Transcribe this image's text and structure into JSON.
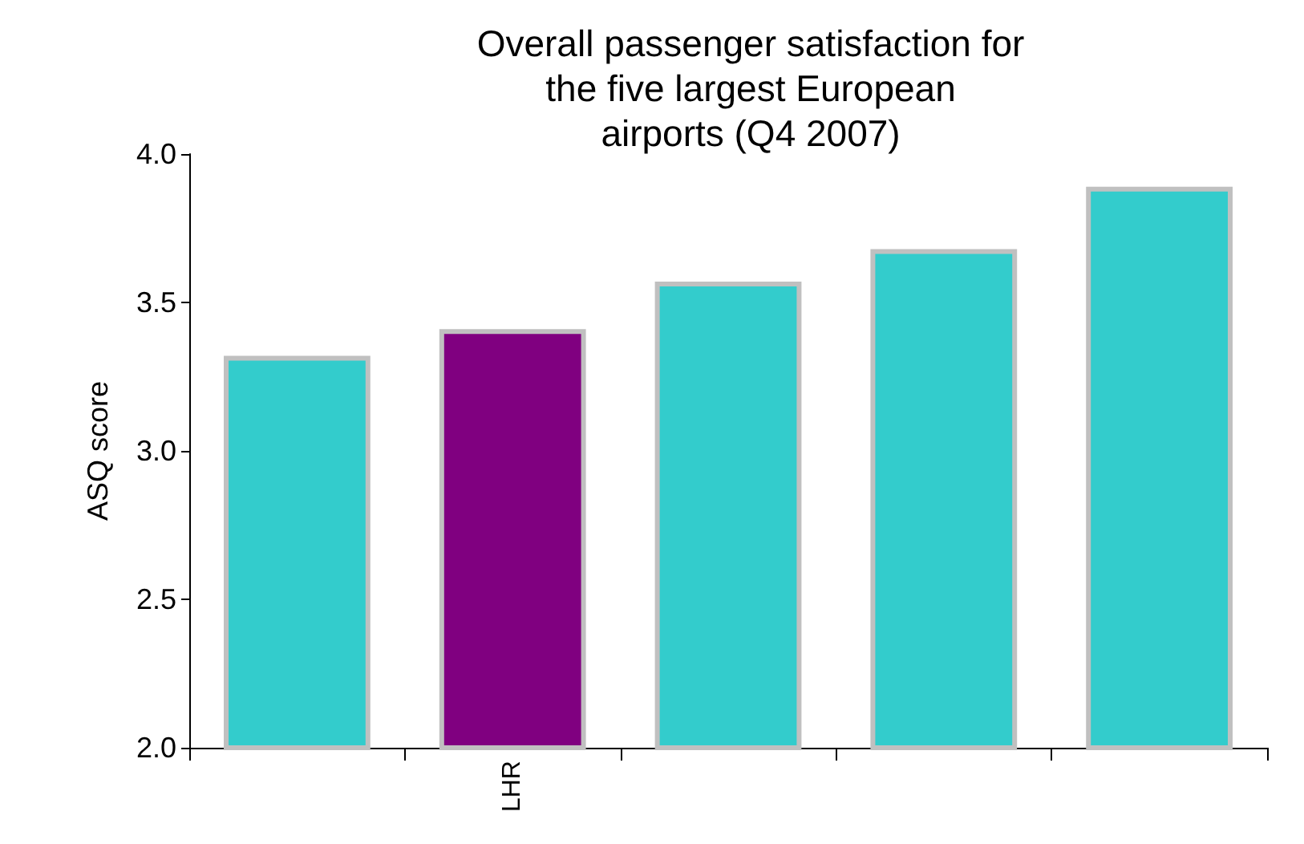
{
  "chart_data": {
    "type": "bar",
    "title": "Overall passenger satisfaction for the five largest European airports (Q4 2007)",
    "ylabel": "ASQ score",
    "categories": [
      null,
      "LHR",
      null,
      null,
      null
    ],
    "values": [
      3.32,
      3.41,
      3.57,
      3.68,
      3.89
    ],
    "colors": [
      "#33cccc",
      "#800080",
      "#33cccc",
      "#33cccc",
      "#33cccc"
    ],
    "ylim": [
      2.0,
      4.0
    ],
    "yticks": [
      {
        "value": 2,
        "label": "2.0"
      },
      {
        "value": 2.5,
        "label": "2.5"
      },
      {
        "value": 3,
        "label": "3.0"
      },
      {
        "value": 3.5,
        "label": "3.5"
      },
      {
        "value": 4,
        "label": "4.0"
      }
    ],
    "grid": false
  }
}
